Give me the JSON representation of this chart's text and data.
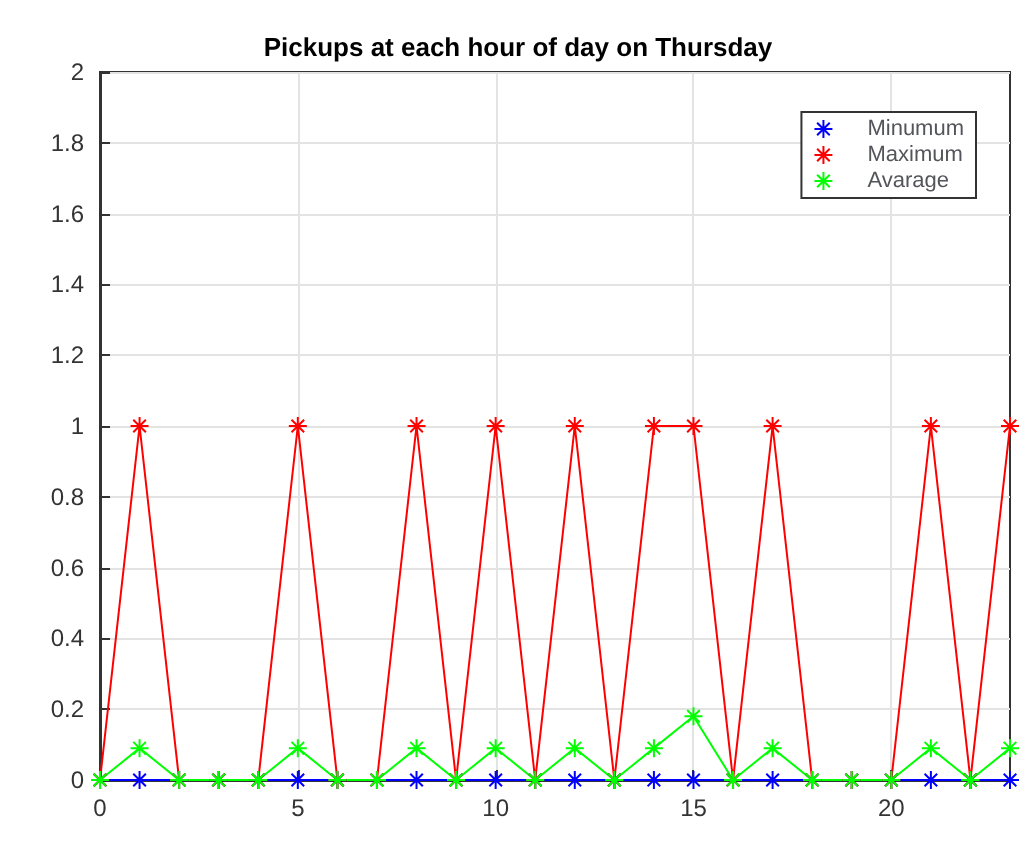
{
  "chart_data": {
    "type": "line",
    "title": "Pickups at each hour of day on Thursday",
    "x": [
      0,
      1,
      2,
      3,
      4,
      5,
      6,
      7,
      8,
      9,
      10,
      11,
      12,
      13,
      14,
      15,
      16,
      17,
      18,
      19,
      20,
      21,
      22,
      23
    ],
    "series": [
      {
        "name": "Minumum",
        "color": "#0000ff",
        "values": [
          0,
          0,
          0,
          0,
          0,
          0,
          0,
          0,
          0,
          0,
          0,
          0,
          0,
          0,
          0,
          0,
          0,
          0,
          0,
          0,
          0,
          0,
          0,
          0
        ]
      },
      {
        "name": "Maximum",
        "color": "#ff0000",
        "values": [
          0,
          1,
          0,
          0,
          0,
          1,
          0,
          0,
          1,
          0,
          1,
          0,
          1,
          0,
          1,
          1,
          0,
          1,
          0,
          0,
          0,
          1,
          0,
          1
        ]
      },
      {
        "name": "Avarage",
        "color": "#00ff00",
        "values": [
          0,
          0.09,
          0,
          0,
          0,
          0.09,
          0,
          0,
          0.09,
          0,
          0.09,
          0,
          0.09,
          0,
          0.09,
          0.18,
          0,
          0.09,
          0,
          0,
          0,
          0.09,
          0,
          0.09
        ]
      }
    ],
    "xlim": [
      0,
      23
    ],
    "xticks": [
      0,
      5,
      10,
      15,
      20
    ],
    "ylim": [
      0,
      2
    ],
    "yticks": [
      0,
      0.2,
      0.4,
      0.6,
      0.8,
      1,
      1.2,
      1.4,
      1.6,
      1.8,
      2
    ],
    "grid": true,
    "legend": "top right",
    "marker": "cross",
    "line_style": "solid"
  }
}
